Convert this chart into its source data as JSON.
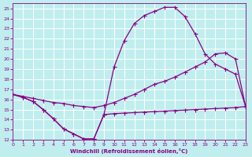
{
  "bg_color": "#c0eeee",
  "grid_color": "#aadddd",
  "line_color": "#880088",
  "xlabel": "Windchill (Refroidissement éolien,°C)",
  "xlim": [
    0,
    23
  ],
  "ylim": [
    12,
    25.5
  ],
  "xticks": [
    0,
    1,
    2,
    3,
    4,
    5,
    6,
    7,
    8,
    9,
    10,
    11,
    12,
    13,
    14,
    15,
    16,
    17,
    18,
    19,
    20,
    21,
    22,
    23
  ],
  "yticks": [
    12,
    13,
    14,
    15,
    16,
    17,
    18,
    19,
    20,
    21,
    22,
    23,
    24,
    25
  ],
  "curve1_x": [
    0,
    1,
    2,
    3,
    4,
    5,
    6,
    7,
    8,
    9,
    10,
    11,
    12,
    13,
    14,
    15,
    16,
    17,
    18,
    19,
    20,
    21,
    22,
    23
  ],
  "curve1_y": [
    16.5,
    16.2,
    15.8,
    15.0,
    14.1,
    13.1,
    12.6,
    12.1,
    12.1,
    14.5,
    19.2,
    21.8,
    23.5,
    24.3,
    24.7,
    25.1,
    25.1,
    24.2,
    22.5,
    20.5,
    19.5,
    19.0,
    18.5,
    15.3
  ],
  "curve2_x": [
    0,
    1,
    2,
    3,
    4,
    5,
    6,
    7,
    8,
    9,
    10,
    11,
    12,
    13,
    14,
    15,
    16,
    17,
    18,
    19,
    20,
    21,
    22,
    23
  ],
  "curve2_y": [
    16.5,
    16.2,
    15.8,
    15.0,
    14.1,
    13.1,
    12.6,
    12.1,
    12.1,
    14.5,
    14.6,
    14.65,
    14.7,
    14.75,
    14.8,
    14.85,
    14.9,
    14.95,
    15.0,
    15.05,
    15.1,
    15.15,
    15.2,
    15.3
  ],
  "curve3_x": [
    0,
    1,
    2,
    3,
    4,
    5,
    6,
    7,
    8,
    9,
    10,
    11,
    12,
    13,
    14,
    15,
    16,
    17,
    18,
    19,
    20,
    21,
    22,
    23
  ],
  "curve3_y": [
    16.5,
    16.3,
    16.1,
    15.9,
    15.7,
    15.6,
    15.4,
    15.3,
    15.2,
    15.4,
    15.7,
    16.1,
    16.5,
    17.0,
    17.5,
    17.8,
    18.2,
    18.7,
    19.2,
    19.7,
    20.5,
    20.6,
    20.0,
    15.3
  ]
}
